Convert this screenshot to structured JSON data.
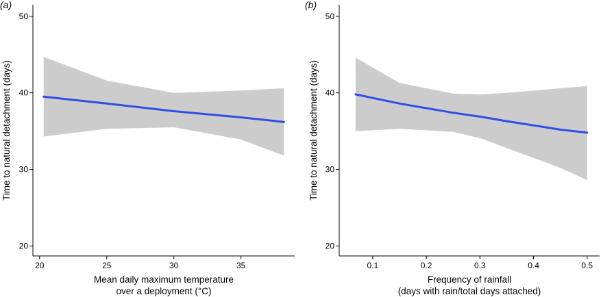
{
  "chart_data": [
    {
      "type": "line",
      "panel_label": "(a)",
      "xlabel_lines": [
        "Mean daily maximum temperature",
        "over a deployment (°C)"
      ],
      "ylabel": "Time to natural detachment (days)",
      "xlim": [
        19.5,
        39.0
      ],
      "ylim": [
        18.7,
        51.5
      ],
      "xticks": [
        20,
        25,
        30,
        35
      ],
      "xtick_labels": [
        "20",
        "25",
        "30",
        "35"
      ],
      "yticks": [
        20,
        30,
        40,
        50
      ],
      "ytick_labels": [
        "20",
        "30",
        "40",
        "50"
      ],
      "grid": false,
      "line_color": "#2f4de6",
      "band_color": "#cccccc",
      "series": [
        {
          "x": [
            20.3,
            25.0,
            30.0,
            35.0,
            38.2
          ],
          "fit": [
            39.5,
            38.6,
            37.6,
            36.8,
            36.2
          ],
          "ci_upper": [
            44.7,
            41.6,
            40.0,
            40.3,
            40.6
          ],
          "ci_lower": [
            34.3,
            35.3,
            35.5,
            33.9,
            31.8
          ]
        }
      ]
    },
    {
      "type": "line",
      "panel_label": "(b)",
      "xlabel_lines": [
        "Frequency of rainfall",
        "(days with rain/total days attached)"
      ],
      "ylabel": "Time to natural detachment (days)",
      "xlim": [
        0.0375,
        0.5233
      ],
      "ylim": [
        18.7,
        51.5
      ],
      "xticks": [
        0.1,
        0.2,
        0.3,
        0.4,
        0.5
      ],
      "xtick_labels": [
        "0.1",
        "0.2",
        "0.3",
        "0.4",
        "0.5"
      ],
      "yticks": [
        20,
        30,
        40,
        50
      ],
      "ytick_labels": [
        "20",
        "30",
        "40",
        "50"
      ],
      "grid": false,
      "line_color": "#2f4de6",
      "band_color": "#cccccc",
      "series": [
        {
          "x": [
            0.068,
            0.15,
            0.25,
            0.3,
            0.35,
            0.45,
            0.5
          ],
          "fit": [
            39.8,
            38.6,
            37.4,
            36.9,
            36.3,
            35.2,
            34.8
          ],
          "ci_upper": [
            44.6,
            41.3,
            39.9,
            39.8,
            40.0,
            40.6,
            40.9
          ],
          "ci_lower": [
            35.0,
            35.3,
            34.9,
            34.1,
            32.8,
            30.2,
            28.6
          ]
        }
      ]
    }
  ]
}
